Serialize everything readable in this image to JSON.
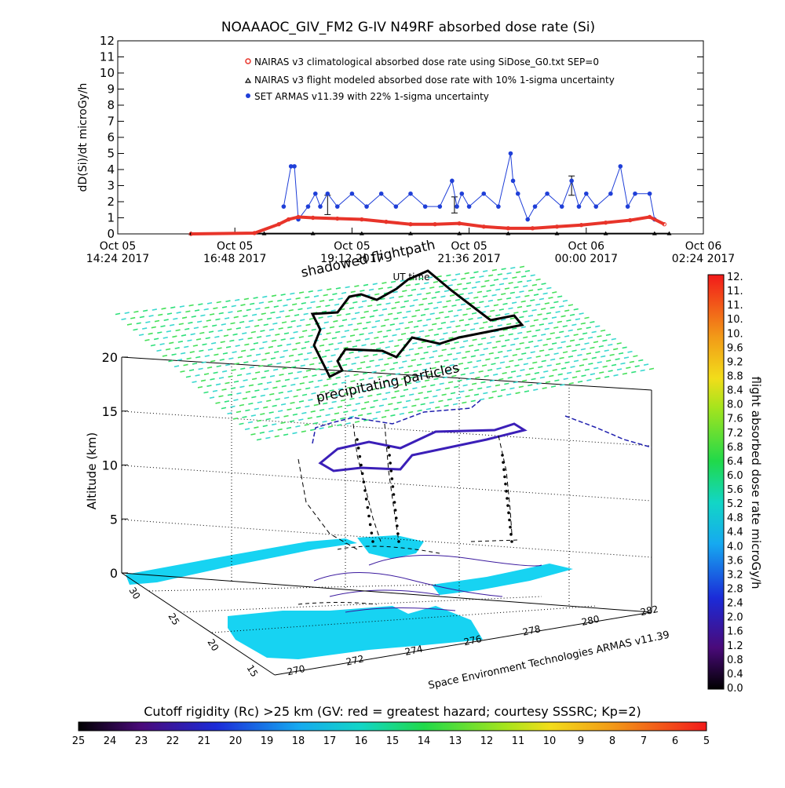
{
  "chart_data": [
    {
      "type": "line",
      "title": "NOAAAOC_GIV_FM2 G-IV    N49RF  absorbed dose rate (Si)",
      "ylabel": "dD(Si)/dt microGy/h",
      "ylim": [
        0,
        12
      ],
      "y_ticks": [
        "0",
        "1",
        "2",
        "3",
        "4",
        "5",
        "6",
        "7",
        "8",
        "9",
        "10",
        "11",
        "12"
      ],
      "x_unit_hours_range": [
        0,
        12
      ],
      "x_ticks": [
        {
          "line1": "Oct 05",
          "line2": "14:24 2017"
        },
        {
          "line1": "Oct 05",
          "line2": "16:48 2017"
        },
        {
          "line1": "Oct 05",
          "line2": "19:12 2017"
        },
        {
          "line1": "Oct 05",
          "line2": "21:36 2017"
        },
        {
          "line1": "Oct 06",
          "line2": "00:00 2017"
        },
        {
          "line1": "Oct 06",
          "line2": "02:24 2017"
        }
      ],
      "xlabel": "UT time",
      "legend": {
        "placement": "top-center",
        "entries": [
          {
            "label": "NAIRAS v3 climatological absorbed dose rate using SiDose_G0.txt SEP=0",
            "marker": "circle-open",
            "color": "#e8342a"
          },
          {
            "label": "NAIRAS v3 flight modeled absorbed dose rate with 10% 1-sigma uncertainty",
            "marker": "triangle",
            "color": "#000000"
          },
          {
            "label": "SET ARMAS v11.39 with 22% 1-sigma uncertainty",
            "marker": "dot",
            "color": "#1f3fd8"
          }
        ]
      },
      "series": [
        {
          "name": "NAIRAS v3 climatological absorbed dose rate using SiDose_G0.txt SEP=0",
          "color": "#e8342a",
          "x": [
            1.5,
            2.8,
            3.3,
            3.5,
            3.7,
            4.0,
            4.5,
            5.0,
            5.5,
            6.0,
            6.5,
            7.0,
            7.5,
            8.0,
            8.5,
            9.0,
            9.5,
            10.0,
            10.5,
            10.9,
            11.2
          ],
          "y": [
            0.0,
            0.05,
            0.6,
            0.9,
            1.05,
            1.0,
            0.95,
            0.9,
            0.75,
            0.6,
            0.6,
            0.65,
            0.45,
            0.35,
            0.35,
            0.45,
            0.55,
            0.7,
            0.85,
            1.05,
            0.6
          ]
        },
        {
          "name": "NAIRAS v3 flight modeled absorbed dose rate with 10% 1-sigma uncertainty",
          "color": "#000000",
          "x": [
            1.5,
            3.0,
            4.0,
            5.0,
            6.0,
            7.0,
            8.0,
            9.0,
            10.0,
            11.0,
            11.3
          ],
          "y": [
            0.02,
            0.02,
            0.02,
            0.02,
            0.02,
            0.02,
            0.02,
            0.02,
            0.02,
            0.02,
            0.02
          ],
          "error_bar_samples": [
            {
              "x": 4.3,
              "y": 1.8,
              "err": 0.6
            },
            {
              "x": 6.9,
              "y": 1.8,
              "err": 0.5
            },
            {
              "x": 9.3,
              "y": 3.0,
              "err": 0.6
            }
          ]
        },
        {
          "name": "SET ARMAS v11.39 with 22% 1-sigma uncertainty",
          "color": "#1f3fd8",
          "x": [
            3.4,
            3.55,
            3.62,
            3.7,
            3.9,
            4.05,
            4.15,
            4.3,
            4.5,
            4.8,
            5.1,
            5.4,
            5.7,
            6.0,
            6.3,
            6.6,
            6.85,
            6.95,
            7.05,
            7.2,
            7.5,
            7.8,
            8.05,
            8.1,
            8.2,
            8.4,
            8.55,
            8.8,
            9.1,
            9.3,
            9.45,
            9.6,
            9.8,
            10.1,
            10.3,
            10.45,
            10.6,
            10.9,
            11.0
          ],
          "y": [
            1.7,
            4.2,
            4.2,
            0.9,
            1.7,
            2.5,
            1.7,
            2.5,
            1.7,
            2.5,
            1.7,
            2.5,
            1.7,
            2.5,
            1.7,
            1.7,
            3.3,
            1.7,
            2.5,
            1.7,
            2.5,
            1.7,
            5.0,
            3.3,
            2.5,
            0.9,
            1.7,
            2.5,
            1.7,
            3.3,
            1.7,
            2.5,
            1.7,
            2.5,
            4.2,
            1.7,
            2.5,
            2.5,
            0.9
          ]
        }
      ]
    },
    {
      "type": "scatter",
      "plot_kind": "3d-perspective-flight-scene",
      "zlabel": "Altitude (km)",
      "z_ticks": [
        "0",
        "5",
        "10",
        "15",
        "20"
      ],
      "x_ticks": [
        "270",
        "272",
        "274",
        "276",
        "278",
        "280",
        "282"
      ],
      "y_ticks": [
        "15",
        "20",
        "25",
        "30"
      ],
      "x_axis_title": "Space Environment Technologies ARMAS v11.39",
      "annotations": [
        "shadowed flightpath",
        "precipitating particles"
      ],
      "colorbar": {
        "title": "flight absorbed dose rate microGy/h",
        "range": [
          0.0,
          12.0
        ],
        "tick_labels": [
          "0.0",
          "0.4",
          "0.8",
          "1.2",
          "1.6",
          "2.0",
          "2.4",
          "2.8",
          "3.2",
          "3.6",
          "4.0",
          "4.4",
          "4.8",
          "5.2",
          "5.6",
          "6.0",
          "6.4",
          "6.8",
          "7.2",
          "7.6",
          "8.0",
          "8.4",
          "8.8",
          "9.2",
          "9.6",
          "10.",
          "10.",
          "11.",
          "11.",
          "12."
        ]
      },
      "flight_track_dose_microGy_h": {
        "low": 1.6,
        "high": 3.2
      },
      "overlay_grid_dose_microGy_h": 5.6
    },
    {
      "type": "heatmap",
      "title": "Cutoff rigidity (Rc) >25 km (GV: red = greatest hazard; courtesy SSSRC; Kp=2)",
      "range": [
        25,
        5
      ],
      "tick_labels": [
        "25",
        "24",
        "23",
        "22",
        "21",
        "20",
        "19",
        "18",
        "17",
        "16",
        "15",
        "14",
        "13",
        "12",
        "11",
        "10",
        "9",
        "8",
        "7",
        "6",
        "5"
      ]
    }
  ]
}
